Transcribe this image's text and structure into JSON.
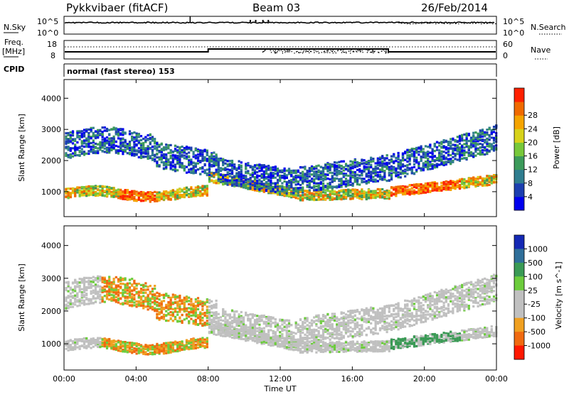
{
  "header": {
    "station": "Pykkvibaer (fitACF)",
    "beam": "Beam 03",
    "date": "26/Feb/2014"
  },
  "noise_panel": {
    "left_label": "N.Sky",
    "right_label": "N.Search",
    "left_ticks": [
      "10^5",
      "10^0"
    ],
    "right_ticks": [
      "10^5",
      "10^0"
    ]
  },
  "freq_panel": {
    "left_label_1": "Freq.",
    "left_label_2": "[MHz]",
    "right_label": "Nave",
    "left_ticks": [
      "18",
      "8"
    ],
    "right_ticks": [
      "60",
      "0"
    ]
  },
  "cpid": {
    "label": "CPID",
    "text": "normal (fast stereo) 153"
  },
  "x_axis": {
    "label": "Time UT",
    "ticks": [
      "00:00",
      "04:00",
      "08:00",
      "12:00",
      "16:00",
      "20:00",
      "00:00"
    ]
  },
  "chart_data": [
    {
      "type": "heatmap",
      "name": "power-panel",
      "ylabel": "Slant Range [km]",
      "yticks": [
        1000,
        2000,
        3000,
        4000
      ],
      "ylim": [
        200,
        4600
      ],
      "xlim_hours": [
        0,
        24
      ],
      "colorbar": {
        "label": "Power [dB]",
        "ticks": [
          "4",
          "8",
          "12",
          "16",
          "20",
          "24",
          "28"
        ],
        "colors": [
          "#0000ee",
          "#1c3fb0",
          "#2f7d8f",
          "#3c9a5a",
          "#77c83a",
          "#d7d21a",
          "#f5a400",
          "#f06a00",
          "#ff2000"
        ]
      }
    },
    {
      "type": "heatmap",
      "name": "velocity-panel",
      "ylabel": "Slant Range [km]",
      "yticks": [
        1000,
        2000,
        3000,
        4000
      ],
      "ylim": [
        200,
        4600
      ],
      "xlim_hours": [
        0,
        24
      ],
      "colorbar": {
        "label": "Velocity [m s^-1]",
        "ticks": [
          "1000",
          "500",
          "100",
          "25",
          "-25",
          "-100",
          "-500",
          "-1000"
        ],
        "colors": [
          "#1428b4",
          "#2f6f9a",
          "#3a9a55",
          "#6ccc3c",
          "#c0c0c0",
          "#c0c0c0",
          "#f0a020",
          "#f06a10",
          "#ff1800"
        ]
      }
    }
  ]
}
